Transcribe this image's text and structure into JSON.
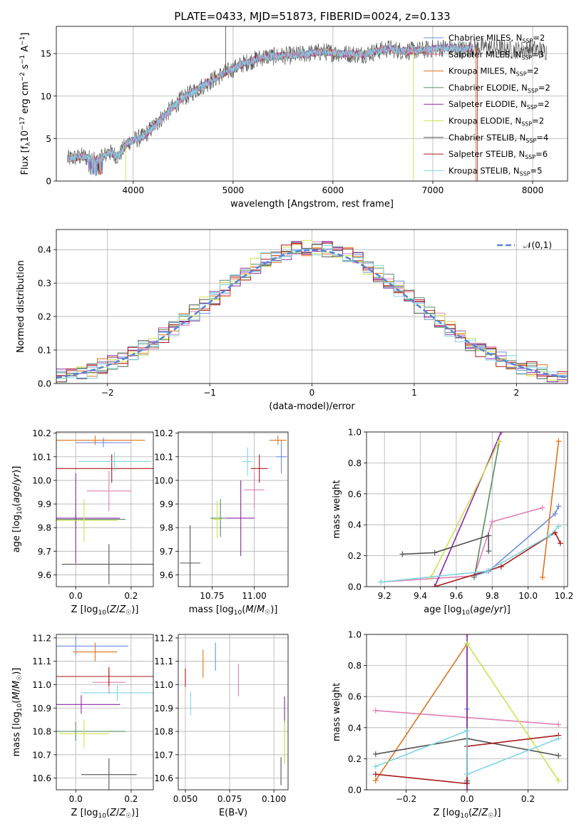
{
  "figure": {
    "title": "PLATE=0433, MJD=51873, FIBERID=0024, z=0.133"
  },
  "colors": {
    "Chabrier MILES": "#6d8fdc",
    "Salpeter MILES": "#e07fb3",
    "Kroupa MILES": "#e0731c",
    "Chabrier ELODIE": "#5a8a63",
    "Salpeter ELODIE": "#8b27a8",
    "Kroupa ELODIE": "#cde24f",
    "Chabrier STELIB": "#535353",
    "Salpeter STELIB": "#a81a1a",
    "Kroupa STELIB": "#7fd6e0"
  },
  "chart_data": [
    {
      "id": "spectrum",
      "type": "line",
      "xlabel": "wavelength [Angstrom, rest frame]",
      "ylabel": "Flux [f_λ 10^-17 erg cm^-2 s^-1 A^-1]",
      "xlim": [
        3230,
        8350
      ],
      "ylim": [
        0,
        18.2
      ],
      "xticks": [
        4000,
        5000,
        6000,
        7000,
        8000
      ],
      "yticks": [
        0,
        5,
        10,
        15
      ],
      "grid": true,
      "legend_position": "top-right",
      "legend": [
        {
          "model": "Chabrier MILES",
          "nssp": "2"
        },
        {
          "model": "Salpeter MILES",
          "nssp": "3"
        },
        {
          "model": "Kroupa MILES",
          "nssp": "2"
        },
        {
          "model": "Chabrier ELODIE",
          "nssp": "2"
        },
        {
          "model": "Salpeter ELODIE",
          "nssp": "2"
        },
        {
          "model": "Kroupa ELODIE",
          "nssp": "2"
        },
        {
          "model": "Chabrier STELIB",
          "nssp": "4"
        },
        {
          "model": "Salpeter STELIB",
          "nssp": "6"
        },
        {
          "model": "Kroupa STELIB",
          "nssp": "5"
        }
      ],
      "data_anchor_points": [
        [
          3340,
          2.6
        ],
        [
          3500,
          2.9
        ],
        [
          3650,
          2.3
        ],
        [
          3750,
          3.4
        ],
        [
          3850,
          2.9
        ],
        [
          3950,
          4.6
        ],
        [
          4100,
          5.2
        ],
        [
          4300,
          7.6
        ],
        [
          4500,
          9.8
        ],
        [
          4750,
          11.6
        ],
        [
          4900,
          12.6
        ],
        [
          5100,
          13.8
        ],
        [
          5300,
          14.6
        ],
        [
          5600,
          14.8
        ],
        [
          5900,
          15.2
        ],
        [
          6100,
          15.0
        ],
        [
          6300,
          14.9
        ],
        [
          6560,
          15.6
        ],
        [
          6700,
          15.3
        ],
        [
          6900,
          15.4
        ],
        [
          7100,
          15.7
        ],
        [
          7300,
          15.5
        ],
        [
          7500,
          15.8
        ],
        [
          7800,
          15.4
        ],
        [
          8000,
          15.6
        ],
        [
          8120,
          15.3
        ]
      ]
    },
    {
      "id": "residuals",
      "type": "histogram",
      "xlabel": "(data-model)/error",
      "ylabel": "Normed distribution",
      "xlim": [
        -2.5,
        2.5
      ],
      "ylim": [
        0,
        0.46
      ],
      "xticks": [
        -2,
        -1,
        0,
        1,
        2
      ],
      "yticks": [
        0.0,
        0.1,
        0.2,
        0.3,
        0.4
      ],
      "grid": true,
      "legend_position": "top-right",
      "reference_curve": {
        "label": "𝒩(0,1)",
        "mean": 0,
        "sigma": 1
      }
    },
    {
      "id": "age-vs-Z",
      "type": "errorbar",
      "xlabel": "Z [log10(Z/Z☉)]",
      "ylabel": "age [log10(age/yr)]",
      "xlim": [
        -0.07,
        0.28
      ],
      "ylim": [
        9.55,
        10.205
      ],
      "xticks": [
        0.0,
        0.2
      ],
      "yticks": [
        9.6,
        9.7,
        9.8,
        9.9,
        10.0,
        10.1,
        10.2
      ],
      "grid": true,
      "points": [
        {
          "model": "Chabrier MILES",
          "x": 0.1,
          "y": 10.16,
          "xerr": 0.1,
          "yerr": 0.02
        },
        {
          "model": "Salpeter MILES",
          "x": 0.12,
          "y": 9.955,
          "xerr": 0.08,
          "yerr": 0.085
        },
        {
          "model": "Kroupa MILES",
          "x": 0.07,
          "y": 10.17,
          "xerr": 0.18,
          "yerr": 0.02
        },
        {
          "model": "Chabrier ELODIE",
          "x": 0.0,
          "y": 9.835,
          "xerr": 0.18,
          "yerr": 0.02
        },
        {
          "model": "Salpeter ELODIE",
          "x": 0.0,
          "y": 9.84,
          "xerr": 0.16,
          "yerr": 0.19
        },
        {
          "model": "Kroupa ELODIE",
          "x": 0.03,
          "y": 9.83,
          "xerr": 0.12,
          "yerr": 0.09
        },
        {
          "model": "Chabrier STELIB",
          "x": 0.12,
          "y": 9.645,
          "xerr": 0.17,
          "yerr": 0.085
        },
        {
          "model": "Salpeter STELIB",
          "x": 0.13,
          "y": 10.05,
          "xerr": 0.26,
          "yerr": 0.06
        },
        {
          "model": "Kroupa STELIB",
          "x": 0.14,
          "y": 10.08,
          "xerr": 0.13,
          "yerr": 0.04
        }
      ]
    },
    {
      "id": "age-vs-mass",
      "type": "errorbar",
      "xlabel": "mass [log10(M/M☉)]",
      "ylabel": "",
      "xlim": [
        10.55,
        11.2
      ],
      "ylim": [
        9.55,
        10.205
      ],
      "xticks": [
        10.75,
        11.0
      ],
      "yticks": [
        9.6,
        9.7,
        9.8,
        9.9,
        10.0,
        10.1,
        10.2
      ],
      "grid": true,
      "points": [
        {
          "model": "Chabrier MILES",
          "x": 11.16,
          "y": 10.1,
          "xerr": 0.03,
          "yerr": 0.07
        },
        {
          "model": "Salpeter MILES",
          "x": 11.0,
          "y": 9.96,
          "xerr": 0.06,
          "yerr": 0.08
        },
        {
          "model": "Kroupa MILES",
          "x": 11.14,
          "y": 10.17,
          "xerr": 0.05,
          "yerr": 0.02
        },
        {
          "model": "Chabrier ELODIE",
          "x": 10.8,
          "y": 9.84,
          "xerr": 0.06,
          "yerr": 0.08
        },
        {
          "model": "Salpeter ELODIE",
          "x": 10.92,
          "y": 9.84,
          "xerr": 0.08,
          "yerr": 0.16
        },
        {
          "model": "Kroupa ELODIE",
          "x": 10.78,
          "y": 9.835,
          "xerr": 0.03,
          "yerr": 0.08
        },
        {
          "model": "Chabrier STELIB",
          "x": 10.62,
          "y": 9.65,
          "xerr": 0.06,
          "yerr": 0.16
        },
        {
          "model": "Salpeter STELIB",
          "x": 11.03,
          "y": 10.05,
          "xerr": 0.05,
          "yerr": 0.06
        },
        {
          "model": "Kroupa STELIB",
          "x": 10.96,
          "y": 10.08,
          "xerr": 0.03,
          "yerr": 0.06
        }
      ]
    },
    {
      "id": "mass-weight-vs-age",
      "type": "line",
      "xlabel": "age [log10(age/yr)]",
      "ylabel": "mass weight",
      "xlim": [
        9.1,
        10.22
      ],
      "ylim": [
        0,
        1.0
      ],
      "xticks": [
        9.2,
        9.4,
        9.6,
        9.8,
        10.0,
        10.2
      ],
      "yticks": [
        0.0,
        0.2,
        0.4,
        0.6,
        0.8,
        1.0
      ],
      "grid": true,
      "series": [
        {
          "model": "Chabrier MILES",
          "x": [
            9.7,
            9.78,
            10.15,
            10.17
          ],
          "y": [
            0.07,
            0.1,
            0.47,
            0.52
          ]
        },
        {
          "model": "Salpeter MILES",
          "x": [
            9.18,
            9.7,
            9.8,
            10.08
          ],
          "y": [
            0.03,
            0.07,
            0.42,
            0.51
          ]
        },
        {
          "model": "Kroupa MILES",
          "x": [
            10.08,
            10.17
          ],
          "y": [
            0.06,
            0.94
          ]
        },
        {
          "model": "Chabrier ELODIE",
          "x": [
            9.7,
            9.84
          ],
          "y": [
            0.06,
            0.94
          ]
        },
        {
          "model": "Salpeter ELODIE",
          "x": [
            9.48,
            9.85
          ],
          "y": [
            0.0,
            1.0
          ]
        },
        {
          "model": "Kroupa ELODIE",
          "x": [
            9.46,
            9.84
          ],
          "y": [
            0.06,
            0.94
          ]
        },
        {
          "model": "Chabrier STELIB",
          "x": [
            9.3,
            9.48,
            9.78,
            9.78
          ],
          "y": [
            0.21,
            0.22,
            0.33,
            0.23
          ]
        },
        {
          "model": "Salpeter STELIB",
          "x": [
            9.48,
            9.85,
            10.15,
            10.18
          ],
          "y": [
            0.0,
            0.13,
            0.35,
            0.28
          ]
        },
        {
          "model": "Kroupa STELIB",
          "x": [
            9.18,
            9.77,
            10.12,
            10.17
          ],
          "y": [
            0.03,
            0.1,
            0.33,
            0.39
          ]
        }
      ]
    },
    {
      "id": "mass-vs-Z",
      "type": "errorbar",
      "xlabel": "Z [log10(Z/Z☉)]",
      "ylabel": "mass [log10(M/M☉)]",
      "xlim": [
        -0.07,
        0.28
      ],
      "ylim": [
        10.55,
        11.215
      ],
      "xticks": [
        0.0,
        0.2
      ],
      "yticks": [
        10.6,
        10.7,
        10.8,
        10.9,
        11.0,
        11.1,
        11.2
      ],
      "grid": true,
      "points": [
        {
          "model": "Chabrier MILES",
          "x": 0.0,
          "y": 11.165,
          "xerr": 0.19,
          "yerr": 0.04
        },
        {
          "model": "Salpeter MILES",
          "x": 0.12,
          "y": 11.01,
          "xerr": 0.06,
          "yerr": 0.05
        },
        {
          "model": "Kroupa MILES",
          "x": 0.07,
          "y": 11.14,
          "xerr": 0.08,
          "yerr": 0.04
        },
        {
          "model": "Chabrier ELODIE",
          "x": 0.0,
          "y": 10.8,
          "xerr": 0.18,
          "yerr": 0.04
        },
        {
          "model": "Salpeter ELODIE",
          "x": 0.02,
          "y": 10.915,
          "xerr": 0.14,
          "yerr": 0.04
        },
        {
          "model": "Kroupa ELODIE",
          "x": 0.03,
          "y": 10.79,
          "xerr": 0.09,
          "yerr": 0.06
        },
        {
          "model": "Chabrier STELIB",
          "x": 0.12,
          "y": 10.615,
          "xerr": 0.1,
          "yerr": 0.07
        },
        {
          "model": "Salpeter STELIB",
          "x": 0.12,
          "y": 11.035,
          "xerr": 0.24,
          "yerr": 0.04
        },
        {
          "model": "Kroupa STELIB",
          "x": 0.15,
          "y": 10.965,
          "xerr": 0.13,
          "yerr": 0.035
        }
      ]
    },
    {
      "id": "mass-vs-ebv",
      "type": "errorbar",
      "xlabel": "E(B-V)",
      "ylabel": "",
      "xlim": [
        0.046,
        0.108
      ],
      "ylim": [
        10.55,
        11.215
      ],
      "xticks": [
        0.05,
        0.075,
        0.1
      ],
      "yticks": [
        10.6,
        10.7,
        10.8,
        10.9,
        11.0,
        11.1,
        11.2
      ],
      "grid": true,
      "points": [
        {
          "model": "Chabrier MILES",
          "x": 0.067,
          "y": 11.12,
          "xerr": 0,
          "yerr": 0.06
        },
        {
          "model": "Salpeter MILES",
          "x": 0.08,
          "y": 11.02,
          "xerr": 0,
          "yerr": 0.07
        },
        {
          "model": "Kroupa MILES",
          "x": 0.06,
          "y": 11.09,
          "xerr": 0,
          "yerr": 0.06
        },
        {
          "model": "Chabrier ELODIE",
          "x": 0.106,
          "y": 10.76,
          "xerr": 0,
          "yerr": 0.1
        },
        {
          "model": "Salpeter ELODIE",
          "x": 0.106,
          "y": 10.9,
          "xerr": 0,
          "yerr": 0.05
        },
        {
          "model": "Kroupa ELODIE",
          "x": 0.106,
          "y": 10.75,
          "xerr": 0,
          "yerr": 0.09
        },
        {
          "model": "Chabrier STELIB",
          "x": 0.104,
          "y": 10.63,
          "xerr": 0,
          "yerr": 0.06
        },
        {
          "model": "Salpeter STELIB",
          "x": 0.05,
          "y": 11.03,
          "xerr": 0,
          "yerr": 0.04
        },
        {
          "model": "Kroupa STELIB",
          "x": 0.053,
          "y": 10.92,
          "xerr": 0,
          "yerr": 0.05
        }
      ]
    },
    {
      "id": "mass-weight-vs-Z",
      "type": "line",
      "xlabel": "Z [log10(Z/Z☉)]",
      "ylabel": "mass weight",
      "xlim": [
        -0.33,
        0.33
      ],
      "ylim": [
        0,
        1.0
      ],
      "xticks": [
        -0.2,
        0.0,
        0.2
      ],
      "yticks": [
        0.0,
        0.2,
        0.4,
        0.6,
        0.8,
        1.0
      ],
      "grid": true,
      "series": [
        {
          "model": "Chabrier MILES",
          "x": [
            0.0,
            0.0
          ],
          "y": [
            0.05,
            0.52
          ]
        },
        {
          "model": "Salpeter MILES",
          "x": [
            -0.3,
            0.3
          ],
          "y": [
            0.51,
            0.42
          ]
        },
        {
          "model": "Kroupa MILES",
          "x": [
            -0.3,
            0.0
          ],
          "y": [
            0.06,
            0.94
          ]
        },
        {
          "model": "Chabrier ELODIE",
          "x": [
            0.0,
            0.0
          ],
          "y": [
            0.06,
            0.94
          ]
        },
        {
          "model": "Salpeter ELODIE",
          "x": [
            0.0,
            0.0
          ],
          "y": [
            0.0,
            1.0
          ]
        },
        {
          "model": "Kroupa ELODIE",
          "x": [
            0.0,
            0.3
          ],
          "y": [
            0.94,
            0.06
          ]
        },
        {
          "model": "Chabrier STELIB",
          "x": [
            -0.3,
            0.0,
            0.3
          ],
          "y": [
            0.23,
            0.33,
            0.22
          ]
        },
        {
          "model": "Salpeter STELIB",
          "x": [
            -0.3,
            0.0,
            0.0,
            0.3
          ],
          "y": [
            0.1,
            0.04,
            0.28,
            0.35
          ]
        },
        {
          "model": "Kroupa STELIB",
          "x": [
            -0.3,
            0.0,
            0.0,
            0.3
          ],
          "y": [
            0.15,
            0.38,
            0.1,
            0.33
          ]
        }
      ]
    }
  ]
}
